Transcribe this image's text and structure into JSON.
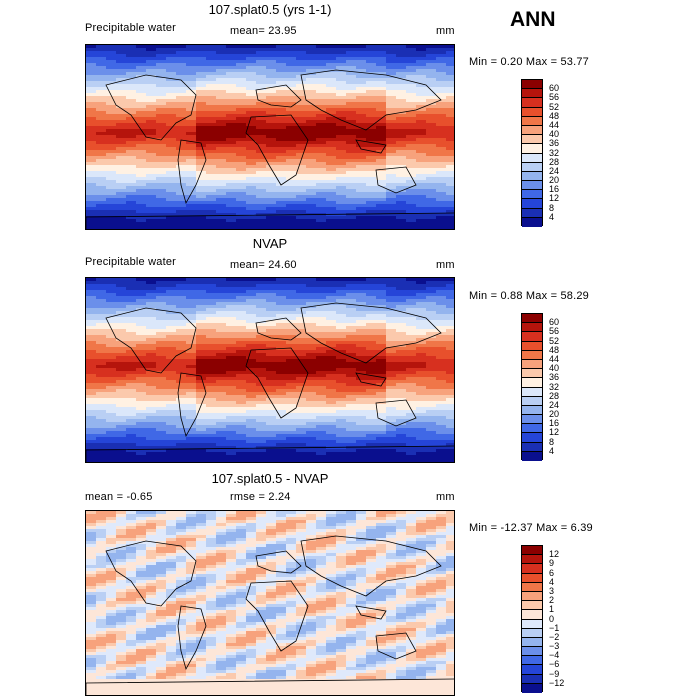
{
  "season": "ANN",
  "panels": [
    {
      "title": "107.splat0.5 (yrs 1-1)",
      "left_label": "Precipitable water",
      "center_label": "mean=  23.95",
      "units": "mm",
      "minmax": "Min =   0.20 Max =  53.77",
      "field": "model",
      "colorbar": {
        "labels": [
          "60",
          "56",
          "52",
          "48",
          "44",
          "40",
          "36",
          "32",
          "28",
          "24",
          "20",
          "16",
          "12",
          "8",
          "4"
        ],
        "colors": [
          "#8b0000",
          "#b5140c",
          "#d7301f",
          "#e8502c",
          "#f07648",
          "#f7a27c",
          "#fbc9ac",
          "#fff1e3",
          "#dbe7fa",
          "#b9cff4",
          "#94b4ee",
          "#6b8fea",
          "#4068e6",
          "#2545d8",
          "#1a2fb4",
          "#0a0f8e"
        ]
      }
    },
    {
      "title": "NVAP",
      "left_label": "Precipitable water",
      "center_label": "mean=  24.60",
      "units": "mm",
      "minmax": "Min =   0.88 Max =  58.29",
      "field": "obs",
      "colorbar": {
        "labels": [
          "60",
          "56",
          "52",
          "48",
          "44",
          "40",
          "36",
          "32",
          "28",
          "24",
          "20",
          "16",
          "12",
          "8",
          "4"
        ],
        "colors": [
          "#8b0000",
          "#b5140c",
          "#d7301f",
          "#e8502c",
          "#f07648",
          "#f7a27c",
          "#fbc9ac",
          "#fff1e3",
          "#dbe7fa",
          "#b9cff4",
          "#94b4ee",
          "#6b8fea",
          "#4068e6",
          "#2545d8",
          "#1a2fb4",
          "#0a0f8e"
        ]
      }
    },
    {
      "title": "107.splat0.5 - NVAP",
      "left_label": "mean =   -0.65",
      "center_label": "rmse =    2.24",
      "units": "mm",
      "minmax": "Min = -12.37 Max =   6.39",
      "field": "diff",
      "colorbar": {
        "labels": [
          "12",
          "9",
          "6",
          "4",
          "3",
          "2",
          "1",
          "0",
          "−1",
          "−2",
          "−3",
          "−4",
          "−6",
          "−9",
          "−12"
        ],
        "colors": [
          "#8b0000",
          "#b5140c",
          "#d7301f",
          "#e8502c",
          "#f07648",
          "#f7a27c",
          "#fbc9ac",
          "#fde6d8",
          "#dfe9fb",
          "#b9cff4",
          "#94b4ee",
          "#6b8fea",
          "#4068e6",
          "#2545d8",
          "#1a2fb4",
          "#0a0f8e"
        ]
      }
    }
  ]
}
